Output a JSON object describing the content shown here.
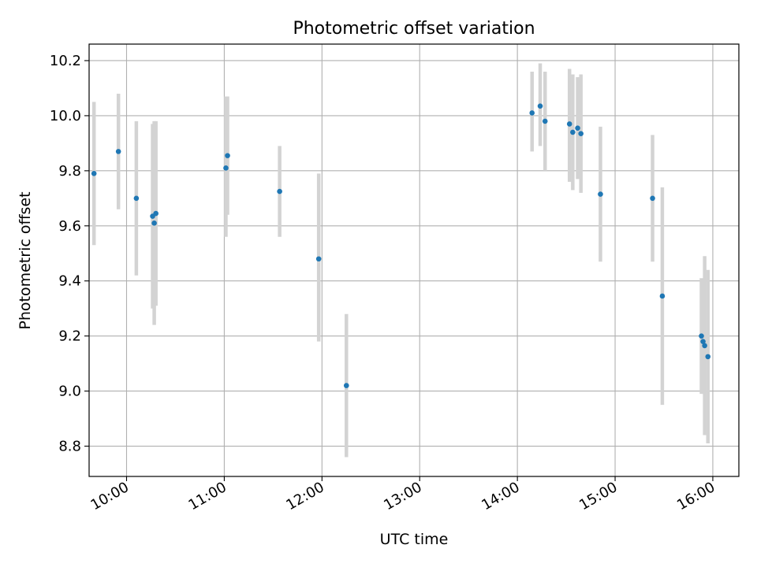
{
  "chart_data": {
    "type": "scatter",
    "title": "Photometric offset variation",
    "xlabel": "UTC time",
    "ylabel": "Photometric offset",
    "x_ticks": [
      "10:00",
      "11:00",
      "12:00",
      "13:00",
      "14:00",
      "15:00",
      "16:00"
    ],
    "y_ticks": [
      "8.8",
      "9.0",
      "9.2",
      "9.4",
      "9.6",
      "9.8",
      "10.0",
      "10.2"
    ],
    "xlim": [
      "09:37",
      "16:16"
    ],
    "ylim": [
      8.69,
      10.26
    ],
    "grid": true,
    "point_color": "#1f77b4",
    "errorbar_color": "#d3d3d3",
    "points": [
      {
        "time": "09:40",
        "value": 9.79,
        "low": 9.53,
        "high": 10.05
      },
      {
        "time": "09:55",
        "value": 9.87,
        "low": 9.66,
        "high": 10.08
      },
      {
        "time": "10:06",
        "value": 9.7,
        "low": 9.42,
        "high": 9.98
      },
      {
        "time": "10:16",
        "value": 9.635,
        "low": 9.3,
        "high": 9.97
      },
      {
        "time": "10:17",
        "value": 9.61,
        "low": 9.24,
        "high": 9.98
      },
      {
        "time": "10:18",
        "value": 9.645,
        "low": 9.31,
        "high": 9.98
      },
      {
        "time": "11:01",
        "value": 9.81,
        "low": 9.56,
        "high": 10.07
      },
      {
        "time": "11:02",
        "value": 9.855,
        "low": 9.64,
        "high": 10.07
      },
      {
        "time": "11:34",
        "value": 9.725,
        "low": 9.56,
        "high": 9.89
      },
      {
        "time": "11:58",
        "value": 9.48,
        "low": 9.18,
        "high": 9.79
      },
      {
        "time": "12:15",
        "value": 9.02,
        "low": 8.76,
        "high": 9.28
      },
      {
        "time": "14:09",
        "value": 10.01,
        "low": 9.87,
        "high": 10.16
      },
      {
        "time": "14:14",
        "value": 10.035,
        "low": 9.89,
        "high": 10.19
      },
      {
        "time": "14:17",
        "value": 9.98,
        "low": 9.8,
        "high": 10.16
      },
      {
        "time": "14:32",
        "value": 9.97,
        "low": 9.76,
        "high": 10.17
      },
      {
        "time": "14:34",
        "value": 9.94,
        "low": 9.73,
        "high": 10.15
      },
      {
        "time": "14:37",
        "value": 9.955,
        "low": 9.77,
        "high": 10.14
      },
      {
        "time": "14:39",
        "value": 9.935,
        "low": 9.72,
        "high": 10.15
      },
      {
        "time": "14:51",
        "value": 9.715,
        "low": 9.47,
        "high": 9.96
      },
      {
        "time": "15:23",
        "value": 9.7,
        "low": 9.47,
        "high": 9.93
      },
      {
        "time": "15:29",
        "value": 9.345,
        "low": 8.95,
        "high": 9.74
      },
      {
        "time": "15:53",
        "value": 9.2,
        "low": 8.99,
        "high": 9.41
      },
      {
        "time": "15:54",
        "value": 9.18,
        "low": 8.99,
        "high": 9.4
      },
      {
        "time": "15:55",
        "value": 9.165,
        "low": 8.84,
        "high": 9.49
      },
      {
        "time": "15:57",
        "value": 9.125,
        "low": 8.81,
        "high": 9.44
      }
    ]
  }
}
